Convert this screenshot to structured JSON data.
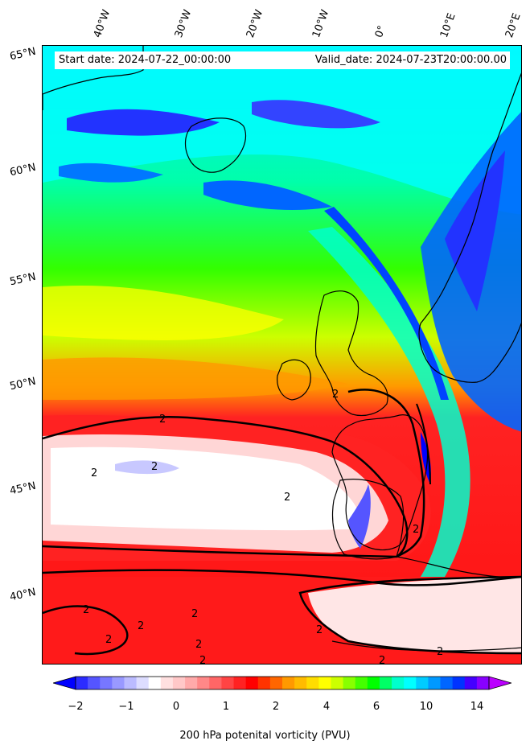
{
  "info": {
    "start_date": "Start date: 2024-07-22_00:00:00",
    "valid_date": "Valid_date: 2024-07-23T20:00:00.00"
  },
  "longitude_labels": [
    "40°W",
    "30°W",
    "20°W",
    "10°W",
    "0°",
    "10°E",
    "20°E"
  ],
  "latitude_labels": [
    "65°N",
    "60°N",
    "55°N",
    "50°N",
    "45°N",
    "40°N"
  ],
  "contour_label": "2",
  "colorbar": {
    "label": "200 hPa potenital vorticity (PVU)",
    "tick_labels": [
      "−2",
      "−1",
      "0",
      "1",
      "2",
      "4",
      "6",
      "10",
      "14"
    ],
    "tick_values": [
      -2,
      -1,
      0,
      1,
      2,
      4,
      6,
      10,
      14
    ],
    "colors": [
      "#0000ff",
      "#2b2bff",
      "#5555ff",
      "#7777ff",
      "#9999ff",
      "#bbbbff",
      "#ddddff",
      "#ffffff",
      "#ffe0e0",
      "#ffc8c8",
      "#ffaaaa",
      "#ff8888",
      "#ff6666",
      "#ff4444",
      "#ff2222",
      "#ff0000",
      "#ff3300",
      "#ff6600",
      "#ff9900",
      "#ffbb00",
      "#ffdd00",
      "#ffff00",
      "#ccff00",
      "#88ff00",
      "#44ff00",
      "#00ff00",
      "#00ff66",
      "#00ffcc",
      "#00ffff",
      "#00ccff",
      "#0099ff",
      "#0066ff",
      "#0033ff",
      "#4400ff",
      "#8800ff",
      "#bb00ff"
    ],
    "extend": "both"
  },
  "legend_colors": {
    "contour": "#000000",
    "coastline": "#000000"
  }
}
